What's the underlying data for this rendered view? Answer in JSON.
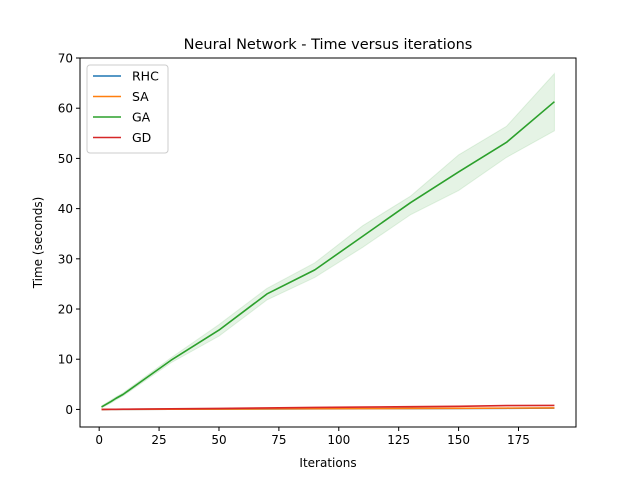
{
  "chart_data": {
    "type": "line",
    "title": "Neural Network - Time versus iterations",
    "xlabel": "Iterations",
    "ylabel": "Time (seconds)",
    "xlim": [
      -8,
      199
    ],
    "ylim": [
      -3.5,
      70
    ],
    "xticks": [
      0,
      25,
      50,
      75,
      100,
      125,
      150,
      175
    ],
    "yticks": [
      0,
      10,
      20,
      30,
      40,
      50,
      60,
      70
    ],
    "grid": false,
    "legend_position": "top-left",
    "x": [
      1,
      5,
      7,
      10,
      30,
      50,
      70,
      90,
      110,
      130,
      150,
      170,
      190
    ],
    "series": [
      {
        "name": "RHC",
        "color": "#1f77b4",
        "values": [
          0.0,
          0.01,
          0.01,
          0.02,
          0.05,
          0.08,
          0.1,
          0.13,
          0.15,
          0.18,
          0.2,
          0.23,
          0.26
        ]
      },
      {
        "name": "SA",
        "color": "#ff7f0e",
        "values": [
          0.0,
          0.01,
          0.01,
          0.02,
          0.05,
          0.08,
          0.11,
          0.14,
          0.17,
          0.2,
          0.23,
          0.26,
          0.3
        ]
      },
      {
        "name": "GA",
        "color": "#2ca02c",
        "values": [
          0.5,
          1.6,
          2.2,
          3.0,
          9.8,
          15.8,
          23.0,
          27.8,
          34.5,
          41.2,
          47.3,
          53.2,
          61.3
        ],
        "lower": [
          0.3,
          1.3,
          1.9,
          2.7,
          9.3,
          14.6,
          21.8,
          26.3,
          32.3,
          38.8,
          43.6,
          50.2,
          55.5
        ],
        "upper": [
          0.7,
          1.9,
          2.5,
          3.3,
          10.3,
          16.9,
          24.1,
          29.2,
          36.6,
          42.5,
          50.7,
          56.4,
          66.9
        ]
      },
      {
        "name": "GD",
        "color": "#d62728",
        "values": [
          0.0,
          0.02,
          0.03,
          0.04,
          0.12,
          0.2,
          0.3,
          0.39,
          0.47,
          0.55,
          0.63,
          0.76,
          0.8
        ]
      }
    ]
  }
}
